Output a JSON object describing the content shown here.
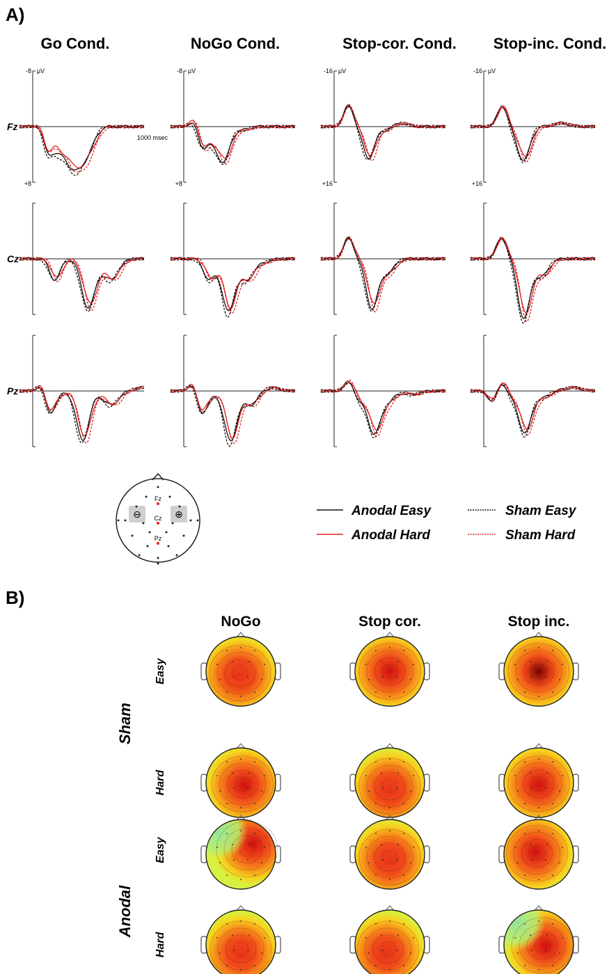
{
  "panel_a": {
    "label": "A)",
    "conditions": [
      "Go Cond.",
      "NoGo Cond.",
      "Stop-cor. Cond.",
      "Stop-inc. Cond."
    ],
    "electrodes": [
      "Fz",
      "Cz",
      "Pz"
    ],
    "scale": {
      "go_nogo": {
        "top": "-8",
        "bottom": "+8",
        "unit": "µV"
      },
      "stop": {
        "top": "-16",
        "bottom": "+16",
        "unit": "µV"
      },
      "time_label": "1000 msec"
    },
    "headmap": {
      "electrode_labels": [
        "Fz",
        "Cz",
        "Pz"
      ],
      "cathode": "⊖",
      "anode": "⊕"
    },
    "legend": [
      {
        "label": "Anodal Easy",
        "color": "#111111",
        "style": "solid"
      },
      {
        "label": "Sham Easy",
        "color": "#111111",
        "style": "dotted"
      },
      {
        "label": "Anodal Hard",
        "color": "#e02020",
        "style": "solid"
      },
      {
        "label": "Sham Hard",
        "color": "#e02020",
        "style": "dotted"
      }
    ]
  },
  "panel_b": {
    "label": "B)",
    "columns": [
      "NoGo",
      "Stop cor.",
      "Stop inc."
    ],
    "groups": [
      "Sham",
      "Anodal"
    ],
    "rows": [
      "Easy",
      "Hard",
      "Easy",
      "Hard"
    ]
  },
  "chart_data": [
    {
      "type": "line",
      "description_source": "ERP waveforms, panel A",
      "x_range_ms": [
        0,
        1000
      ],
      "y_axis": "negative up",
      "ylim_go_nogo": [
        -8,
        8
      ],
      "ylim_stop": [
        -16,
        16
      ],
      "series_names": [
        "Anodal Easy",
        "Anodal Hard",
        "Sham Easy",
        "Sham Hard"
      ],
      "panels": [
        {
          "condition": "Go Cond.",
          "electrode": "Fz",
          "scale": 8,
          "peaks": [
            [
              90,
              -1
            ],
            [
              130,
              4
            ],
            [
              230,
              3
            ],
            [
              330,
              3.8
            ],
            [
              410,
              4
            ],
            [
              500,
              3
            ]
          ]
        },
        {
          "condition": "NoGo Cond.",
          "electrode": "Fz",
          "scale": 8,
          "peaks": [
            [
              100,
              -1.2
            ],
            [
              160,
              3
            ],
            [
              260,
              1.8
            ],
            [
              360,
              4.8
            ],
            [
              520,
              0.5
            ]
          ]
        },
        {
          "condition": "Stop-cor. Cond.",
          "electrode": "Fz",
          "scale": 16,
          "peaks": [
            [
              130,
              -6
            ],
            [
              200,
              0
            ],
            [
              310,
              9
            ],
            [
              460,
              1
            ],
            [
              600,
              -1
            ]
          ]
        },
        {
          "condition": "Stop-inc. Cond.",
          "electrode": "Fz",
          "scale": 16,
          "peaks": [
            [
              100,
              0
            ],
            [
              170,
              -6
            ],
            [
              260,
              1
            ],
            [
              360,
              9.5
            ],
            [
              500,
              0
            ],
            [
              700,
              -1
            ]
          ]
        },
        {
          "condition": "Go Cond.",
          "electrode": "Cz",
          "scale": 8,
          "peaks": [
            [
              120,
              0
            ],
            [
              200,
              3
            ],
            [
              500,
              7
            ],
            [
              700,
              3
            ],
            [
              1000,
              0
            ]
          ]
        },
        {
          "condition": "NoGo Cond.",
          "electrode": "Cz",
          "scale": 8,
          "peaks": [
            [
              150,
              0
            ],
            [
              230,
              3
            ],
            [
              400,
              7.5
            ],
            [
              560,
              3
            ],
            [
              700,
              0.5
            ]
          ]
        },
        {
          "condition": "Stop-cor. Cond.",
          "electrode": "Cz",
          "scale": 16,
          "peaks": [
            [
              130,
              -6
            ],
            [
              220,
              0
            ],
            [
              340,
              14
            ],
            [
              480,
              4
            ],
            [
              600,
              0
            ]
          ]
        },
        {
          "condition": "Stop-inc. Cond.",
          "electrode": "Cz",
          "scale": 16,
          "peaks": [
            [
              160,
              -6
            ],
            [
              220,
              0
            ],
            [
              360,
              17
            ],
            [
              520,
              5
            ],
            [
              700,
              0
            ]
          ]
        },
        {
          "condition": "Go Cond.",
          "electrode": "Pz",
          "scale": 8,
          "peaks": [
            [
              90,
              -1.5
            ],
            [
              140,
              3
            ],
            [
              200,
              1
            ],
            [
              450,
              7
            ],
            [
              700,
              2
            ],
            [
              1000,
              -0.5
            ]
          ]
        },
        {
          "condition": "NoGo Cond.",
          "electrode": "Pz",
          "scale": 8,
          "peaks": [
            [
              90,
              -1.5
            ],
            [
              150,
              3
            ],
            [
              220,
              1
            ],
            [
              420,
              7.2
            ],
            [
              600,
              2
            ],
            [
              780,
              -0.5
            ]
          ]
        },
        {
          "condition": "Stop-cor. Cond.",
          "electrode": "Pz",
          "scale": 16,
          "peaks": [
            [
              140,
              -3
            ],
            [
              230,
              3
            ],
            [
              360,
              12
            ],
            [
              480,
              3
            ],
            [
              700,
              1
            ]
          ]
        },
        {
          "condition": "Stop-inc. Cond.",
          "electrode": "Pz",
          "scale": 16,
          "peaks": [
            [
              80,
              3
            ],
            [
              170,
              -3
            ],
            [
              240,
              2
            ],
            [
              370,
              12
            ],
            [
              520,
              2
            ],
            [
              800,
              -1
            ]
          ]
        }
      ]
    }
  ]
}
